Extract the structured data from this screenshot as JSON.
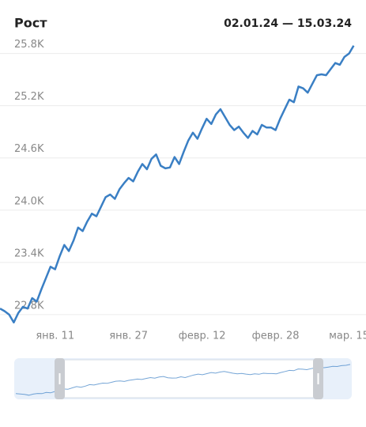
{
  "chart_data": {
    "type": "line",
    "title": "Рост",
    "subtitle": "02.01.24 — 15.03.24",
    "categories": [
      null,
      null,
      null,
      null,
      null,
      null,
      null,
      null,
      null,
      null,
      null,
      null,
      "янв. 11",
      null,
      null,
      null,
      null,
      null,
      null,
      null,
      null,
      null,
      null,
      null,
      null,
      null,
      null,
      null,
      "янв. 27",
      null,
      null,
      null,
      null,
      null,
      null,
      null,
      null,
      null,
      null,
      null,
      null,
      null,
      null,
      null,
      "февр. 12",
      null,
      null,
      null,
      null,
      null,
      null,
      null,
      null,
      null,
      null,
      null,
      null,
      null,
      null,
      null,
      "февр. 28",
      null,
      null,
      null,
      null,
      null,
      null,
      null,
      null,
      null,
      null,
      null,
      null,
      null,
      null,
      null,
      "мар. 15",
      null
    ],
    "values": [
      22870,
      22840,
      22800,
      22710,
      22820,
      22890,
      22870,
      22990,
      22950,
      23090,
      23220,
      23350,
      23320,
      23470,
      23600,
      23530,
      23650,
      23800,
      23760,
      23870,
      23960,
      23930,
      24040,
      24150,
      24180,
      24130,
      24240,
      24310,
      24370,
      24330,
      24440,
      24530,
      24470,
      24590,
      24640,
      24510,
      24480,
      24490,
      24610,
      24530,
      24670,
      24800,
      24890,
      24820,
      24940,
      25050,
      24990,
      25100,
      25160,
      25070,
      24980,
      24920,
      24960,
      24890,
      24830,
      24910,
      24870,
      24980,
      24950,
      24950,
      24920,
      25050,
      25160,
      25270,
      25240,
      25420,
      25400,
      25350,
      25450,
      25550,
      25560,
      25550,
      25620,
      25690,
      25670,
      25760,
      25800,
      25890
    ],
    "color": "#3a7fc4",
    "ylim": [
      22690,
      25960
    ],
    "yticks": [
      {
        "value": 22800,
        "label": "22.8K"
      },
      {
        "value": 23400,
        "label": "23.4K"
      },
      {
        "value": 24000,
        "label": "24.0K"
      },
      {
        "value": 24600,
        "label": "24.6K"
      },
      {
        "value": 25200,
        "label": "25.2K"
      },
      {
        "value": 25800,
        "label": "25.8K"
      }
    ],
    "grid": true
  }
}
